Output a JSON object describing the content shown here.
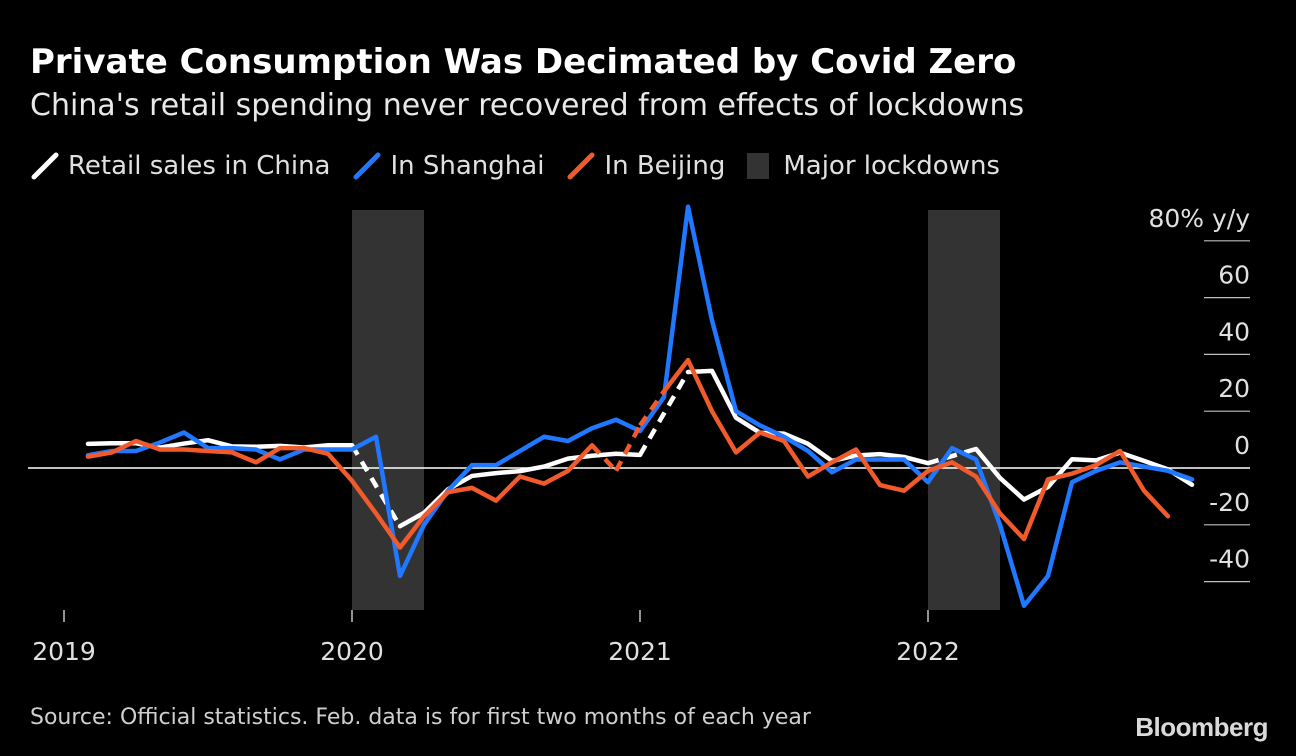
{
  "header": {
    "title": "Private Consumption Was Decimated by Covid Zero",
    "subtitle": "China's retail spending never recovered from effects of lockdowns"
  },
  "legend": [
    {
      "label": "Retail sales in China",
      "color": "#ffffff",
      "kind": "line"
    },
    {
      "label": "In Shanghai",
      "color": "#1f78ff",
      "kind": "line"
    },
    {
      "label": "In Beijing",
      "color": "#f15a2b",
      "kind": "line"
    },
    {
      "label": "Major lockdowns",
      "color": "#333333",
      "kind": "box"
    }
  ],
  "footer": {
    "source": "Source: Official statistics. Feb. data is for first two months of each year",
    "logo": "Bloomberg"
  },
  "chart_data": {
    "type": "line",
    "x_unit": "months",
    "x_start": "2019-01",
    "x_ticks": [
      {
        "label": "2019",
        "x": 0
      },
      {
        "label": "2020",
        "x": 12
      },
      {
        "label": "2021",
        "x": 24
      },
      {
        "label": "2022",
        "x": 36
      }
    ],
    "ylim": [
      -50,
      80
    ],
    "y_ticks": [
      {
        "value": 80,
        "label": "80% y/y"
      },
      {
        "value": 60,
        "label": "60"
      },
      {
        "value": 40,
        "label": "40"
      },
      {
        "value": 20,
        "label": "20"
      },
      {
        "value": 0,
        "label": "0"
      },
      {
        "value": -20,
        "label": "-20"
      },
      {
        "value": -40,
        "label": "-40"
      }
    ],
    "zero_line": true,
    "lockdowns": [
      {
        "start": 12,
        "end": 15
      },
      {
        "start": 36,
        "end": 39
      }
    ],
    "series": [
      {
        "name": "Retail sales in China",
        "color": "#ffffff",
        "points": [
          [
            1,
            8.5
          ],
          [
            2,
            8.7
          ],
          [
            3,
            8.7
          ],
          [
            4,
            7.2
          ],
          [
            5,
            8.6
          ],
          [
            6,
            9.8
          ],
          [
            7,
            7.6
          ],
          [
            8,
            7.5
          ],
          [
            9,
            7.8
          ],
          [
            10,
            7.2
          ],
          [
            11,
            8.0
          ],
          [
            12,
            8.0
          ],
          [
            14,
            -20.5
          ],
          [
            15,
            -15.8
          ],
          [
            16,
            -7.5
          ],
          [
            17,
            -2.8
          ],
          [
            18,
            -1.8
          ],
          [
            19,
            -1.1
          ],
          [
            20,
            0.5
          ],
          [
            21,
            3.3
          ],
          [
            22,
            4.3
          ],
          [
            23,
            5.0
          ],
          [
            24,
            4.6
          ],
          [
            26,
            33.8
          ],
          [
            27,
            34.2
          ],
          [
            28,
            17.7
          ],
          [
            29,
            12.4
          ],
          [
            30,
            12.1
          ],
          [
            31,
            8.5
          ],
          [
            32,
            2.5
          ],
          [
            33,
            4.4
          ],
          [
            34,
            4.9
          ],
          [
            35,
            3.9
          ],
          [
            36,
            1.7
          ],
          [
            38,
            6.7
          ],
          [
            39,
            -3.5
          ],
          [
            40,
            -11.1
          ],
          [
            41,
            -6.7
          ],
          [
            42,
            3.1
          ],
          [
            43,
            2.7
          ],
          [
            44,
            5.4
          ],
          [
            45,
            2.5
          ],
          [
            46,
            -0.5
          ],
          [
            47,
            -5.9
          ]
        ],
        "dashed_gaps": [
          [
            12,
            14
          ],
          [
            24,
            26
          ],
          [
            36,
            38
          ]
        ]
      },
      {
        "name": "In Shanghai",
        "color": "#1f78ff",
        "points": [
          [
            1,
            4.5
          ],
          [
            2,
            6.0
          ],
          [
            3,
            6.0
          ],
          [
            4,
            9.0
          ],
          [
            5,
            12.5
          ],
          [
            6,
            7.0
          ],
          [
            7,
            7.0
          ],
          [
            8,
            6.5
          ],
          [
            9,
            3.0
          ],
          [
            10,
            6.5
          ],
          [
            11,
            6.5
          ],
          [
            12,
            6.5
          ],
          [
            13,
            11.0
          ],
          [
            14,
            -38.0
          ],
          [
            15,
            -20.0
          ],
          [
            16,
            -8.0
          ],
          [
            17,
            1.0
          ],
          [
            18,
            1.0
          ],
          [
            19,
            6.0
          ],
          [
            20,
            11.0
          ],
          [
            21,
            9.5
          ],
          [
            22,
            14.0
          ],
          [
            23,
            17.0
          ],
          [
            24,
            13.0
          ],
          [
            25,
            25.0
          ],
          [
            26,
            92.0
          ],
          [
            27,
            52.0
          ],
          [
            28,
            20.0
          ],
          [
            29,
            15.0
          ],
          [
            30,
            11.0
          ],
          [
            31,
            6.0
          ],
          [
            32,
            -1.5
          ],
          [
            33,
            3.0
          ],
          [
            34,
            3.0
          ],
          [
            35,
            3.0
          ],
          [
            36,
            -5.0
          ],
          [
            37,
            7.0
          ],
          [
            38,
            3.0
          ],
          [
            39,
            -20.0
          ],
          [
            40,
            -48.5
          ],
          [
            41,
            -38.0
          ],
          [
            42,
            -5.0
          ],
          [
            43,
            -1.0
          ],
          [
            44,
            2.0
          ],
          [
            45,
            0.5
          ],
          [
            46,
            -1.0
          ],
          [
            47,
            -4.0
          ]
        ]
      },
      {
        "name": "In Beijing",
        "color": "#f15a2b",
        "points": [
          [
            1,
            4.0
          ],
          [
            2,
            5.5
          ],
          [
            3,
            9.5
          ],
          [
            4,
            6.5
          ],
          [
            5,
            6.5
          ],
          [
            6,
            6.0
          ],
          [
            7,
            5.5
          ],
          [
            8,
            2.0
          ],
          [
            9,
            7.0
          ],
          [
            10,
            7.0
          ],
          [
            11,
            5.0
          ],
          [
            12,
            -4.5
          ],
          [
            13,
            -16.0
          ],
          [
            14,
            -28.0
          ],
          [
            15,
            -17.0
          ],
          [
            16,
            -8.5
          ],
          [
            17,
            -7.0
          ],
          [
            18,
            -11.5
          ],
          [
            19,
            -3.0
          ],
          [
            20,
            -5.5
          ],
          [
            21,
            -1.0
          ],
          [
            22,
            8.0
          ],
          [
            23,
            -1.0
          ],
          [
            24,
            15.0
          ],
          [
            25,
            27.0
          ],
          [
            26,
            38.0
          ],
          [
            27,
            20.0
          ],
          [
            28,
            5.5
          ],
          [
            29,
            12.5
          ],
          [
            30,
            9.5
          ],
          [
            31,
            -3.0
          ],
          [
            32,
            2.0
          ],
          [
            33,
            6.5
          ],
          [
            34,
            -6.0
          ],
          [
            35,
            -8.0
          ],
          [
            36,
            -1.0
          ],
          [
            37,
            2.0
          ],
          [
            38,
            -3.0
          ],
          [
            39,
            -16.0
          ],
          [
            40,
            -25.0
          ],
          [
            41,
            -4.0
          ],
          [
            42,
            -2.0
          ],
          [
            43,
            1.0
          ],
          [
            44,
            6.0
          ],
          [
            45,
            -8.0
          ],
          [
            46,
            -17.0
          ]
        ],
        "dashed_gaps": [
          [
            22,
            23
          ],
          [
            23,
            24
          ],
          [
            24,
            25
          ],
          [
            34,
            36
          ]
        ]
      }
    ]
  }
}
